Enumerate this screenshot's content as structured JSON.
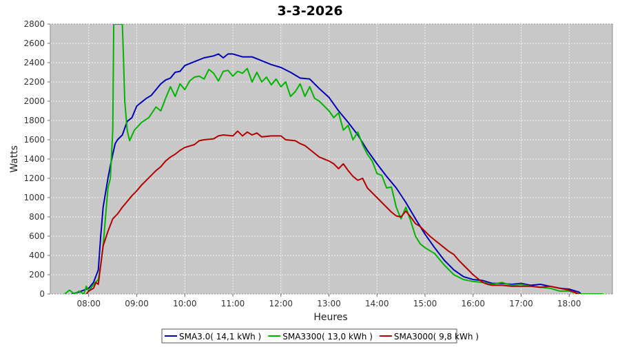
{
  "chart_data": {
    "type": "line",
    "title": "3-3-2026",
    "xlabel": "Heures",
    "ylabel": "Watts",
    "xlim": [
      7.2,
      18.9
    ],
    "ylim": [
      0,
      2800
    ],
    "y_ticks": [
      0,
      200,
      400,
      600,
      800,
      1000,
      1200,
      1400,
      1600,
      1800,
      2000,
      2200,
      2400,
      2600,
      2800
    ],
    "x_ticks": [
      {
        "value": 8,
        "label": "08:00"
      },
      {
        "value": 9,
        "label": "09:00"
      },
      {
        "value": 10,
        "label": "10:00"
      },
      {
        "value": 11,
        "label": "11:00"
      },
      {
        "value": 12,
        "label": "12:00"
      },
      {
        "value": 13,
        "label": "13:00"
      },
      {
        "value": 14,
        "label": "14:00"
      },
      {
        "value": 15,
        "label": "15:00"
      },
      {
        "value": 16,
        "label": "16:00"
      },
      {
        "value": 17,
        "label": "17:00"
      },
      {
        "value": 18,
        "label": "18:00"
      }
    ],
    "grid": true,
    "legend_position": "bottom",
    "series": [
      {
        "name": "SMA3.0( 14,1 kWh )",
        "color": "#0000b4",
        "points": [
          [
            7.65,
            0
          ],
          [
            7.8,
            20
          ],
          [
            8.0,
            60
          ],
          [
            8.1,
            120
          ],
          [
            8.2,
            250
          ],
          [
            8.25,
            600
          ],
          [
            8.3,
            900
          ],
          [
            8.35,
            1050
          ],
          [
            8.4,
            1200
          ],
          [
            8.45,
            1330
          ],
          [
            8.5,
            1450
          ],
          [
            8.55,
            1560
          ],
          [
            8.6,
            1600
          ],
          [
            8.7,
            1650
          ],
          [
            8.8,
            1790
          ],
          [
            8.9,
            1830
          ],
          [
            9.0,
            1950
          ],
          [
            9.1,
            1990
          ],
          [
            9.2,
            2030
          ],
          [
            9.3,
            2060
          ],
          [
            9.4,
            2120
          ],
          [
            9.5,
            2180
          ],
          [
            9.6,
            2220
          ],
          [
            9.7,
            2240
          ],
          [
            9.8,
            2300
          ],
          [
            9.9,
            2310
          ],
          [
            10.0,
            2370
          ],
          [
            10.2,
            2410
          ],
          [
            10.4,
            2450
          ],
          [
            10.6,
            2470
          ],
          [
            10.7,
            2490
          ],
          [
            10.8,
            2450
          ],
          [
            10.9,
            2490
          ],
          [
            11.0,
            2490
          ],
          [
            11.2,
            2460
          ],
          [
            11.4,
            2460
          ],
          [
            11.6,
            2420
          ],
          [
            11.8,
            2380
          ],
          [
            12.0,
            2350
          ],
          [
            12.2,
            2300
          ],
          [
            12.4,
            2240
          ],
          [
            12.6,
            2230
          ],
          [
            12.8,
            2130
          ],
          [
            13.0,
            2040
          ],
          [
            13.2,
            1900
          ],
          [
            13.4,
            1780
          ],
          [
            13.6,
            1650
          ],
          [
            13.8,
            1490
          ],
          [
            14.0,
            1350
          ],
          [
            14.2,
            1220
          ],
          [
            14.4,
            1100
          ],
          [
            14.6,
            950
          ],
          [
            14.8,
            780
          ],
          [
            15.0,
            620
          ],
          [
            15.2,
            480
          ],
          [
            15.4,
            350
          ],
          [
            15.6,
            250
          ],
          [
            15.8,
            180
          ],
          [
            16.0,
            150
          ],
          [
            16.2,
            140
          ],
          [
            16.4,
            110
          ],
          [
            16.6,
            110
          ],
          [
            16.8,
            100
          ],
          [
            17.0,
            110
          ],
          [
            17.2,
            90
          ],
          [
            17.4,
            100
          ],
          [
            17.6,
            80
          ],
          [
            17.8,
            60
          ],
          [
            18.0,
            50
          ],
          [
            18.2,
            20
          ],
          [
            18.25,
            0
          ]
        ]
      },
      {
        "name": "SMA3300( 13,0 kWh )",
        "color": "#00b400",
        "points": [
          [
            7.5,
            0
          ],
          [
            7.6,
            40
          ],
          [
            7.7,
            0
          ],
          [
            7.8,
            30
          ],
          [
            7.9,
            0
          ],
          [
            7.95,
            80
          ],
          [
            8.0,
            30
          ],
          [
            8.1,
            100
          ],
          [
            8.2,
            150
          ],
          [
            8.25,
            300
          ],
          [
            8.3,
            500
          ],
          [
            8.35,
            800
          ],
          [
            8.4,
            1100
          ],
          [
            8.45,
            1200
          ],
          [
            8.5,
            1700
          ],
          [
            8.52,
            2800
          ],
          [
            8.55,
            2800
          ],
          [
            8.7,
            2800
          ],
          [
            8.72,
            2500
          ],
          [
            8.75,
            2000
          ],
          [
            8.8,
            1700
          ],
          [
            8.85,
            1590
          ],
          [
            8.95,
            1700
          ],
          [
            9.1,
            1780
          ],
          [
            9.25,
            1830
          ],
          [
            9.4,
            1940
          ],
          [
            9.5,
            1900
          ],
          [
            9.6,
            2030
          ],
          [
            9.7,
            2150
          ],
          [
            9.8,
            2050
          ],
          [
            9.9,
            2180
          ],
          [
            10.0,
            2120
          ],
          [
            10.1,
            2210
          ],
          [
            10.2,
            2250
          ],
          [
            10.3,
            2260
          ],
          [
            10.4,
            2230
          ],
          [
            10.5,
            2330
          ],
          [
            10.6,
            2290
          ],
          [
            10.7,
            2210
          ],
          [
            10.8,
            2310
          ],
          [
            10.9,
            2320
          ],
          [
            11.0,
            2260
          ],
          [
            11.1,
            2310
          ],
          [
            11.2,
            2290
          ],
          [
            11.3,
            2340
          ],
          [
            11.4,
            2200
          ],
          [
            11.5,
            2300
          ],
          [
            11.6,
            2200
          ],
          [
            11.7,
            2250
          ],
          [
            11.8,
            2170
          ],
          [
            11.9,
            2230
          ],
          [
            12.0,
            2150
          ],
          [
            12.1,
            2200
          ],
          [
            12.2,
            2050
          ],
          [
            12.3,
            2100
          ],
          [
            12.4,
            2180
          ],
          [
            12.5,
            2050
          ],
          [
            12.6,
            2150
          ],
          [
            12.7,
            2030
          ],
          [
            12.8,
            2000
          ],
          [
            13.0,
            1900
          ],
          [
            13.1,
            1830
          ],
          [
            13.2,
            1880
          ],
          [
            13.3,
            1700
          ],
          [
            13.4,
            1750
          ],
          [
            13.5,
            1600
          ],
          [
            13.6,
            1680
          ],
          [
            13.7,
            1550
          ],
          [
            13.8,
            1450
          ],
          [
            13.9,
            1380
          ],
          [
            14.0,
            1250
          ],
          [
            14.1,
            1230
          ],
          [
            14.2,
            1100
          ],
          [
            14.3,
            1110
          ],
          [
            14.4,
            900
          ],
          [
            14.5,
            780
          ],
          [
            14.6,
            900
          ],
          [
            14.7,
            760
          ],
          [
            14.8,
            600
          ],
          [
            14.9,
            520
          ],
          [
            15.0,
            480
          ],
          [
            15.2,
            420
          ],
          [
            15.4,
            300
          ],
          [
            15.6,
            200
          ],
          [
            15.8,
            150
          ],
          [
            16.0,
            130
          ],
          [
            16.2,
            120
          ],
          [
            16.4,
            100
          ],
          [
            16.6,
            120
          ],
          [
            16.8,
            90
          ],
          [
            17.0,
            100
          ],
          [
            17.2,
            80
          ],
          [
            17.4,
            70
          ],
          [
            17.6,
            60
          ],
          [
            17.8,
            30
          ],
          [
            18.0,
            30
          ],
          [
            18.2,
            0
          ],
          [
            18.7,
            0
          ]
        ]
      },
      {
        "name": "SMA3000( 9,8 kWh )",
        "color": "#b40000",
        "points": [
          [
            7.95,
            0
          ],
          [
            8.0,
            30
          ],
          [
            8.1,
            60
          ],
          [
            8.15,
            120
          ],
          [
            8.2,
            100
          ],
          [
            8.25,
            300
          ],
          [
            8.3,
            500
          ],
          [
            8.4,
            650
          ],
          [
            8.5,
            780
          ],
          [
            8.6,
            830
          ],
          [
            8.7,
            900
          ],
          [
            8.8,
            960
          ],
          [
            8.9,
            1020
          ],
          [
            9.0,
            1070
          ],
          [
            9.1,
            1130
          ],
          [
            9.2,
            1180
          ],
          [
            9.3,
            1230
          ],
          [
            9.4,
            1280
          ],
          [
            9.5,
            1320
          ],
          [
            9.6,
            1380
          ],
          [
            9.7,
            1420
          ],
          [
            9.8,
            1450
          ],
          [
            9.9,
            1490
          ],
          [
            10.0,
            1520
          ],
          [
            10.2,
            1550
          ],
          [
            10.3,
            1590
          ],
          [
            10.4,
            1600
          ],
          [
            10.6,
            1610
          ],
          [
            10.7,
            1640
          ],
          [
            10.8,
            1650
          ],
          [
            11.0,
            1640
          ],
          [
            11.1,
            1690
          ],
          [
            11.2,
            1640
          ],
          [
            11.3,
            1680
          ],
          [
            11.4,
            1650
          ],
          [
            11.5,
            1670
          ],
          [
            11.6,
            1630
          ],
          [
            11.8,
            1640
          ],
          [
            12.0,
            1640
          ],
          [
            12.1,
            1600
          ],
          [
            12.3,
            1590
          ],
          [
            12.4,
            1560
          ],
          [
            12.5,
            1540
          ],
          [
            12.6,
            1500
          ],
          [
            12.7,
            1460
          ],
          [
            12.8,
            1420
          ],
          [
            13.0,
            1380
          ],
          [
            13.1,
            1350
          ],
          [
            13.2,
            1300
          ],
          [
            13.3,
            1350
          ],
          [
            13.4,
            1280
          ],
          [
            13.5,
            1220
          ],
          [
            13.6,
            1180
          ],
          [
            13.7,
            1200
          ],
          [
            13.8,
            1100
          ],
          [
            13.9,
            1050
          ],
          [
            14.0,
            1000
          ],
          [
            14.1,
            950
          ],
          [
            14.2,
            900
          ],
          [
            14.3,
            850
          ],
          [
            14.4,
            810
          ],
          [
            14.5,
            800
          ],
          [
            14.6,
            860
          ],
          [
            14.7,
            800
          ],
          [
            14.8,
            730
          ],
          [
            14.9,
            700
          ],
          [
            15.0,
            650
          ],
          [
            15.1,
            600
          ],
          [
            15.2,
            560
          ],
          [
            15.3,
            520
          ],
          [
            15.4,
            480
          ],
          [
            15.5,
            440
          ],
          [
            15.6,
            410
          ],
          [
            15.7,
            350
          ],
          [
            15.8,
            300
          ],
          [
            15.9,
            250
          ],
          [
            16.0,
            200
          ],
          [
            16.1,
            160
          ],
          [
            16.2,
            120
          ],
          [
            16.3,
            100
          ],
          [
            16.4,
            90
          ],
          [
            16.6,
            90
          ],
          [
            16.8,
            80
          ],
          [
            17.0,
            80
          ],
          [
            17.2,
            80
          ],
          [
            17.4,
            70
          ],
          [
            17.6,
            80
          ],
          [
            17.8,
            60
          ],
          [
            18.0,
            40
          ],
          [
            18.1,
            20
          ],
          [
            18.2,
            0
          ]
        ]
      }
    ]
  }
}
